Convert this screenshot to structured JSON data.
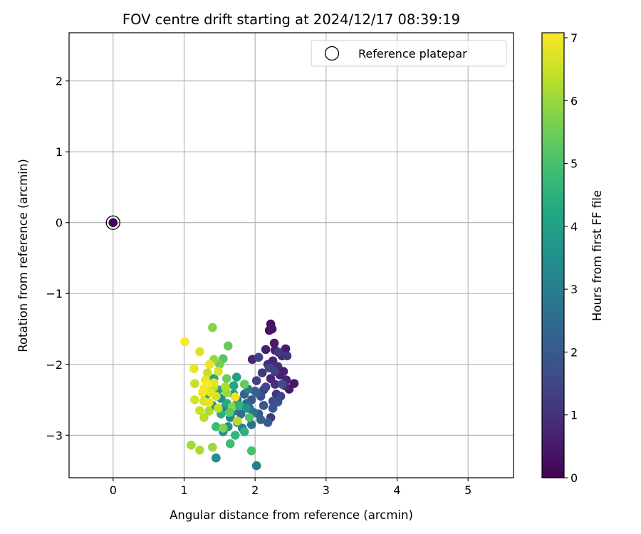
{
  "chart_data": {
    "type": "scatter",
    "title": "FOV centre drift starting at 2024/12/17 08:39:19",
    "xlabel": "Angular distance from reference (arcmin)",
    "ylabel": "Rotation from reference (arcmin)",
    "xlim": [
      -0.62,
      5.64
    ],
    "ylim": [
      -3.6,
      2.68
    ],
    "xticks": [
      0,
      1,
      2,
      3,
      4,
      5
    ],
    "yticks": [
      -3,
      -2,
      -1,
      0,
      1,
      2
    ],
    "grid": true,
    "legend": {
      "placement": "top-right",
      "entries": [
        "Reference platepar"
      ]
    },
    "colorbar": {
      "label": "Hours from first FF file",
      "colormap": "viridis",
      "range": [
        0,
        7.08
      ],
      "ticks": [
        0,
        1,
        2,
        3,
        4,
        5,
        6,
        7
      ]
    },
    "reference_point": {
      "x": 0,
      "y": 0,
      "t": 0
    },
    "points": [
      {
        "x": 2.22,
        "y": -1.43,
        "t": 0.3
      },
      {
        "x": 2.2,
        "y": -1.52,
        "t": 0.35
      },
      {
        "x": 2.24,
        "y": -1.5,
        "t": 0.4
      },
      {
        "x": 2.27,
        "y": -1.7,
        "t": 0.5
      },
      {
        "x": 2.43,
        "y": -1.78,
        "t": 0.55
      },
      {
        "x": 2.15,
        "y": -1.79,
        "t": 0.6
      },
      {
        "x": 2.28,
        "y": -1.8,
        "t": 0.62
      },
      {
        "x": 1.96,
        "y": -1.93,
        "t": 0.7
      },
      {
        "x": 2.38,
        "y": -1.88,
        "t": 0.75
      },
      {
        "x": 2.25,
        "y": -1.95,
        "t": 0.8
      },
      {
        "x": 2.18,
        "y": -2.0,
        "t": 0.85
      },
      {
        "x": 2.32,
        "y": -2.03,
        "t": 0.9
      },
      {
        "x": 2.4,
        "y": -2.1,
        "t": 0.6
      },
      {
        "x": 2.55,
        "y": -2.27,
        "t": 0.45
      },
      {
        "x": 2.48,
        "y": -2.35,
        "t": 0.5
      },
      {
        "x": 2.44,
        "y": -2.22,
        "t": 0.7
      },
      {
        "x": 2.35,
        "y": -2.15,
        "t": 0.65
      },
      {
        "x": 2.22,
        "y": -2.2,
        "t": 0.75
      },
      {
        "x": 2.42,
        "y": -2.3,
        "t": 0.85
      },
      {
        "x": 2.28,
        "y": -2.28,
        "t": 0.95
      },
      {
        "x": 2.2,
        "y": -2.05,
        "t": 1.05
      },
      {
        "x": 2.1,
        "y": -2.12,
        "t": 1.15
      },
      {
        "x": 2.3,
        "y": -2.42,
        "t": 1.0
      },
      {
        "x": 2.45,
        "y": -1.88,
        "t": 1.1
      },
      {
        "x": 2.33,
        "y": -1.83,
        "t": 1.2
      },
      {
        "x": 2.05,
        "y": -1.9,
        "t": 1.3
      },
      {
        "x": 2.28,
        "y": -2.1,
        "t": 1.4
      },
      {
        "x": 2.12,
        "y": -2.36,
        "t": 1.25
      },
      {
        "x": 2.02,
        "y": -2.23,
        "t": 1.35
      },
      {
        "x": 2.36,
        "y": -2.45,
        "t": 1.45
      },
      {
        "x": 2.2,
        "y": -2.05,
        "t": 1.5
      },
      {
        "x": 2.15,
        "y": -2.32,
        "t": 1.55
      },
      {
        "x": 2.08,
        "y": -2.45,
        "t": 1.65
      },
      {
        "x": 2.25,
        "y": -2.52,
        "t": 1.6
      },
      {
        "x": 2.38,
        "y": -2.28,
        "t": 1.7
      },
      {
        "x": 2.0,
        "y": -2.38,
        "t": 1.8
      },
      {
        "x": 2.22,
        "y": -2.75,
        "t": 1.1
      },
      {
        "x": 2.32,
        "y": -2.53,
        "t": 1.75
      },
      {
        "x": 2.25,
        "y": -2.62,
        "t": 1.85
      },
      {
        "x": 2.12,
        "y": -2.58,
        "t": 1.9
      },
      {
        "x": 2.05,
        "y": -2.7,
        "t": 1.95
      },
      {
        "x": 1.95,
        "y": -2.5,
        "t": 2.0
      },
      {
        "x": 2.18,
        "y": -2.82,
        "t": 2.1
      },
      {
        "x": 1.85,
        "y": -2.42,
        "t": 2.15
      },
      {
        "x": 1.92,
        "y": -2.62,
        "t": 2.2
      },
      {
        "x": 2.02,
        "y": -2.4,
        "t": 2.25
      },
      {
        "x": 2.08,
        "y": -2.78,
        "t": 2.3
      },
      {
        "x": 1.88,
        "y": -2.55,
        "t": 2.4
      },
      {
        "x": 1.8,
        "y": -2.7,
        "t": 2.5
      },
      {
        "x": 1.95,
        "y": -2.85,
        "t": 2.6
      },
      {
        "x": 1.98,
        "y": -2.68,
        "t": 2.7
      },
      {
        "x": 1.75,
        "y": -2.5,
        "t": 2.8
      },
      {
        "x": 1.7,
        "y": -2.66,
        "t": 2.9
      },
      {
        "x": 1.82,
        "y": -2.9,
        "t": 3.0
      },
      {
        "x": 2.02,
        "y": -3.43,
        "t": 3.0
      },
      {
        "x": 1.9,
        "y": -2.35,
        "t": 3.05
      },
      {
        "x": 1.58,
        "y": -2.6,
        "t": 3.1
      },
      {
        "x": 1.65,
        "y": -2.75,
        "t": 3.2
      },
      {
        "x": 1.45,
        "y": -3.32,
        "t": 3.4
      },
      {
        "x": 1.52,
        "y": -2.48,
        "t": 3.3
      },
      {
        "x": 1.75,
        "y": -2.82,
        "t": 3.4
      },
      {
        "x": 1.55,
        "y": -2.95,
        "t": 3.5
      },
      {
        "x": 1.62,
        "y": -2.88,
        "t": 3.6
      },
      {
        "x": 1.4,
        "y": -2.58,
        "t": 3.7
      },
      {
        "x": 1.48,
        "y": -2.36,
        "t": 3.8
      },
      {
        "x": 1.7,
        "y": -2.42,
        "t": 3.9
      },
      {
        "x": 1.74,
        "y": -2.18,
        "t": 4.0
      },
      {
        "x": 1.3,
        "y": -2.45,
        "t": 4.1
      },
      {
        "x": 1.42,
        "y": -2.2,
        "t": 4.2
      },
      {
        "x": 1.6,
        "y": -2.55,
        "t": 4.3
      },
      {
        "x": 1.52,
        "y": -2.7,
        "t": 4.4
      },
      {
        "x": 1.85,
        "y": -2.95,
        "t": 4.5
      },
      {
        "x": 1.72,
        "y": -3.0,
        "t": 4.6
      },
      {
        "x": 1.36,
        "y": -2.3,
        "t": 4.7
      },
      {
        "x": 1.45,
        "y": -2.88,
        "t": 4.8
      },
      {
        "x": 1.65,
        "y": -3.12,
        "t": 4.9
      },
      {
        "x": 1.95,
        "y": -3.22,
        "t": 5.0
      },
      {
        "x": 1.92,
        "y": -2.75,
        "t": 5.1
      },
      {
        "x": 1.55,
        "y": -1.92,
        "t": 5.2
      },
      {
        "x": 1.62,
        "y": -1.74,
        "t": 5.4
      },
      {
        "x": 1.4,
        "y": -1.48,
        "t": 5.8
      },
      {
        "x": 1.5,
        "y": -2.0,
        "t": 5.6
      },
      {
        "x": 1.85,
        "y": -2.28,
        "t": 5.4
      },
      {
        "x": 1.6,
        "y": -2.2,
        "t": 5.5
      },
      {
        "x": 1.42,
        "y": -1.93,
        "t": 6.0
      },
      {
        "x": 1.55,
        "y": -2.9,
        "t": 5.7
      },
      {
        "x": 1.4,
        "y": -3.17,
        "t": 6.0
      },
      {
        "x": 1.1,
        "y": -3.14,
        "t": 6.1
      },
      {
        "x": 1.22,
        "y": -3.21,
        "t": 6.2
      },
      {
        "x": 1.68,
        "y": -2.6,
        "t": 5.8
      },
      {
        "x": 1.6,
        "y": -2.4,
        "t": 6.0
      },
      {
        "x": 1.35,
        "y": -2.66,
        "t": 6.2
      },
      {
        "x": 1.75,
        "y": -2.8,
        "t": 6.3
      },
      {
        "x": 1.28,
        "y": -2.75,
        "t": 6.3
      },
      {
        "x": 1.48,
        "y": -2.62,
        "t": 6.4
      },
      {
        "x": 1.22,
        "y": -2.65,
        "t": 6.5
      },
      {
        "x": 1.15,
        "y": -2.27,
        "t": 6.5
      },
      {
        "x": 1.15,
        "y": -2.5,
        "t": 6.6
      },
      {
        "x": 1.42,
        "y": -2.32,
        "t": 6.4
      },
      {
        "x": 1.33,
        "y": -2.12,
        "t": 6.5
      },
      {
        "x": 1.22,
        "y": -1.82,
        "t": 6.7
      },
      {
        "x": 1.28,
        "y": -2.52,
        "t": 6.7
      },
      {
        "x": 1.45,
        "y": -2.45,
        "t": 6.6
      },
      {
        "x": 1.38,
        "y": -2.4,
        "t": 6.8
      },
      {
        "x": 1.3,
        "y": -2.22,
        "t": 6.9
      },
      {
        "x": 1.42,
        "y": -2.26,
        "t": 6.8
      },
      {
        "x": 1.35,
        "y": -2.54,
        "t": 6.85
      },
      {
        "x": 1.14,
        "y": -2.06,
        "t": 6.9
      },
      {
        "x": 1.01,
        "y": -1.68,
        "t": 7.05
      },
      {
        "x": 1.28,
        "y": -2.34,
        "t": 7.0
      },
      {
        "x": 1.72,
        "y": -2.46,
        "t": 6.95
      },
      {
        "x": 1.36,
        "y": -2.0,
        "t": 6.9
      },
      {
        "x": 1.48,
        "y": -2.1,
        "t": 6.7
      },
      {
        "x": 1.26,
        "y": -2.4,
        "t": 7.0
      },
      {
        "x": 1.33,
        "y": -2.28,
        "t": 7.05
      },
      {
        "x": 1.58,
        "y": -2.32,
        "t": 6.2
      },
      {
        "x": 1.64,
        "y": -2.68,
        "t": 5.3
      },
      {
        "x": 1.78,
        "y": -2.58,
        "t": 4.6
      },
      {
        "x": 1.88,
        "y": -2.62,
        "t": 3.6
      },
      {
        "x": 1.7,
        "y": -2.3,
        "t": 4.2
      }
    ]
  }
}
